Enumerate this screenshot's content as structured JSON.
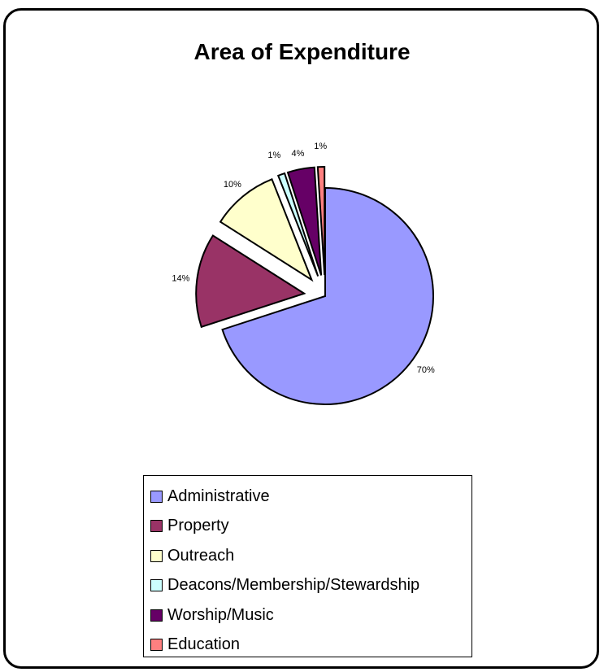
{
  "chart_data": {
    "type": "pie",
    "title": "Area of Expenditure",
    "legend_position": "bottom",
    "exploded": true,
    "slices": [
      {
        "label": "Administrative",
        "value": 70,
        "display": "70%",
        "color": "#9999ff"
      },
      {
        "label": "Property",
        "value": 14,
        "display": "14%",
        "color": "#993366"
      },
      {
        "label": "Outreach",
        "value": 10,
        "display": "10%",
        "color": "#ffffcc"
      },
      {
        "label": "Deacons/Membership/Stewardship",
        "value": 1,
        "display": "1%",
        "color": "#ccffff"
      },
      {
        "label": "Worship/Music",
        "value": 4,
        "display": "4%",
        "color": "#660066"
      },
      {
        "label": "Education",
        "value": 1,
        "display": "1%",
        "color": "#ff8080"
      }
    ]
  }
}
